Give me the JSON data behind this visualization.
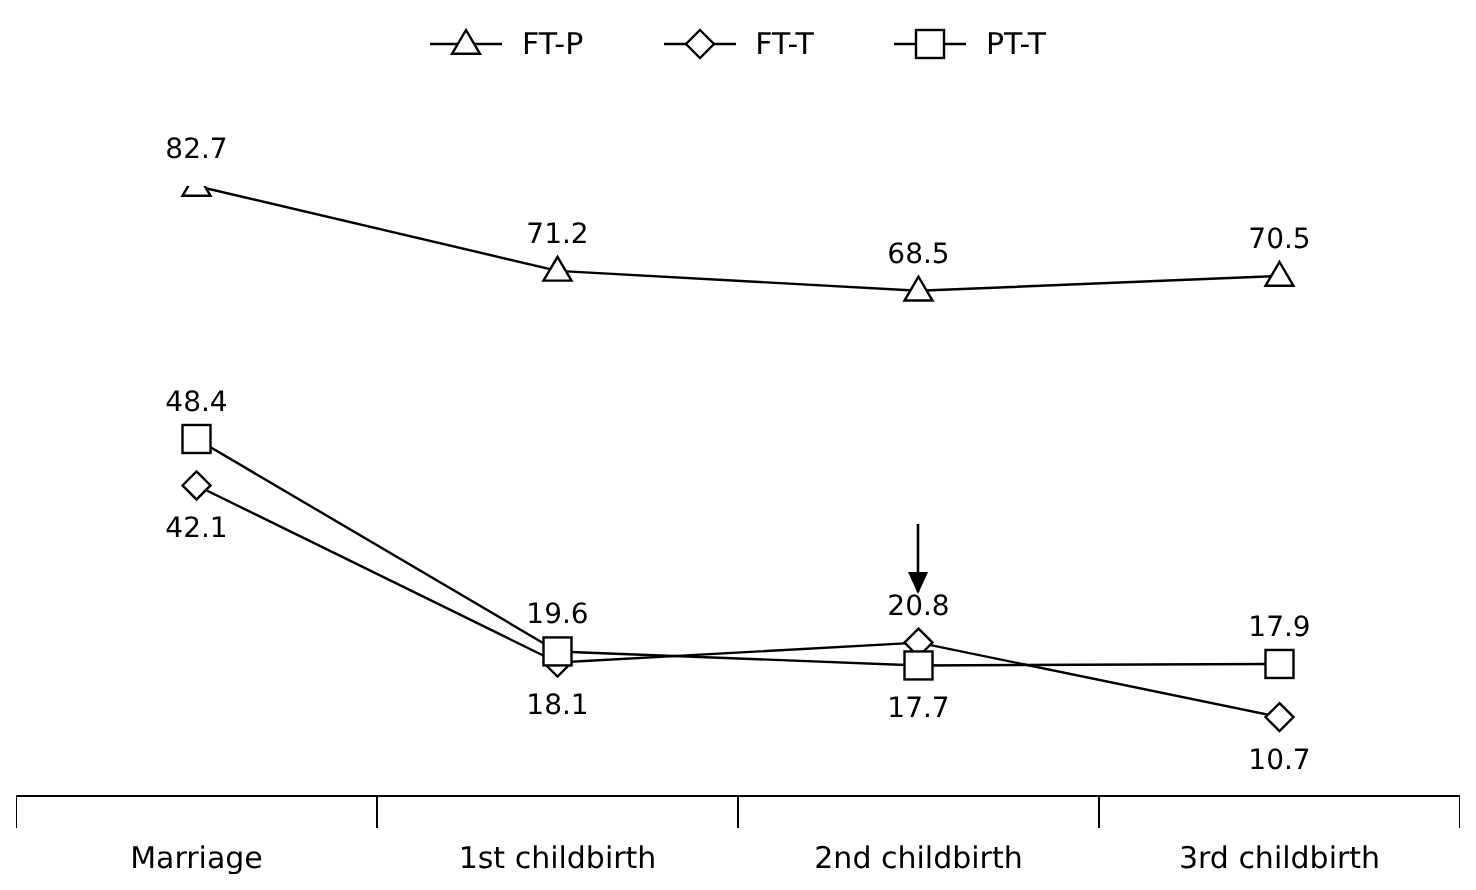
{
  "chart_data": {
    "type": "line",
    "categories": [
      "Marriage",
      "1st childbirth",
      "2nd childbirth",
      "3rd childbirth"
    ],
    "series": [
      {
        "name": "FT-P",
        "color": "#000000",
        "marker": "triangle",
        "values": [
          82.7,
          71.2,
          68.5,
          70.5
        ]
      },
      {
        "name": "FT-T",
        "color": "#000000",
        "marker": "diamond",
        "values": [
          42.1,
          18.1,
          20.8,
          10.7
        ]
      },
      {
        "name": "PT-T",
        "color": "#000000",
        "marker": "square",
        "values": [
          48.4,
          19.6,
          17.7,
          17.9
        ]
      }
    ],
    "data_labels": true,
    "legend": "top",
    "grid": false,
    "line_style": "solid"
  }
}
